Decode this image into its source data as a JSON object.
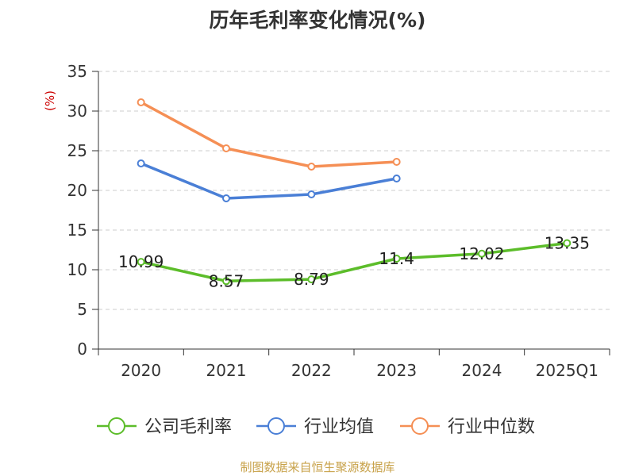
{
  "chart_data": {
    "type": "line",
    "title": "历年毛利率变化情况(%)",
    "ylabel": "(%)",
    "xlabel": "",
    "categories": [
      "2020",
      "2021",
      "2022",
      "2023",
      "2024",
      "2025Q1"
    ],
    "ylim": [
      0,
      35
    ],
    "yticks": [
      0,
      5,
      10,
      15,
      20,
      25,
      30,
      35
    ],
    "grid": true,
    "legend_position": "bottom",
    "series": [
      {
        "name": "公司毛利率",
        "color": "#5cbd2a",
        "values": [
          10.99,
          8.57,
          8.79,
          11.4,
          12.02,
          13.35
        ],
        "labels": [
          "10.99",
          "8.57",
          "8.79",
          "11.4",
          "12.02",
          "13.35"
        ]
      },
      {
        "name": "行业均值",
        "color": "#4a7fd6",
        "values": [
          23.4,
          19.0,
          19.5,
          21.5,
          null,
          null
        ]
      },
      {
        "name": "行业中位数",
        "color": "#f58f55",
        "values": [
          31.1,
          25.3,
          23.0,
          23.6,
          null,
          null
        ]
      }
    ]
  },
  "source": "制图数据来自恒生聚源数据库"
}
